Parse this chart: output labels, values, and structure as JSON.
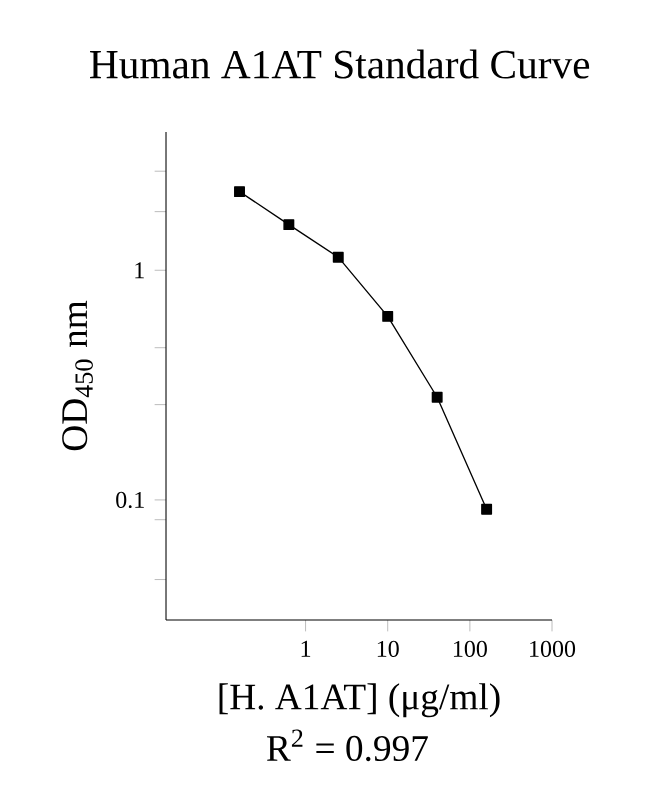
{
  "chart_data": {
    "type": "line",
    "title": "Human A1AT Standard Curve",
    "xlabel": "[H. A1AT] (μg/ml)",
    "ylabel": "OD$_{450}$ nm",
    "annotations": [
      "R$^{2}$ = 0.997"
    ],
    "x": [
      0.157,
      0.626,
      2.5,
      10,
      40,
      160
    ],
    "series": [
      {
        "color": "#000000",
        "values": [
          2.2,
          1.58,
          1.14,
          0.63,
          0.28,
          0.091
        ]
      }
    ],
    "log": "xy",
    "xlim": [
      0.02,
      1000
    ],
    "ylim": [
      0.03,
      4.0
    ],
    "xticks": [
      1,
      10,
      100,
      1000
    ],
    "yticks": [
      {
        "value": 0.045,
        "label": null
      },
      {
        "value": 0.082,
        "label": null
      },
      0.1,
      {
        "value": 0.26,
        "label": null
      },
      {
        "value": 0.46,
        "label": null
      },
      1,
      {
        "value": 1.8,
        "label": null
      },
      {
        "value": 2.7,
        "label": null
      }
    ],
    "grid": false,
    "marker": "square",
    "line_style": "solid"
  }
}
